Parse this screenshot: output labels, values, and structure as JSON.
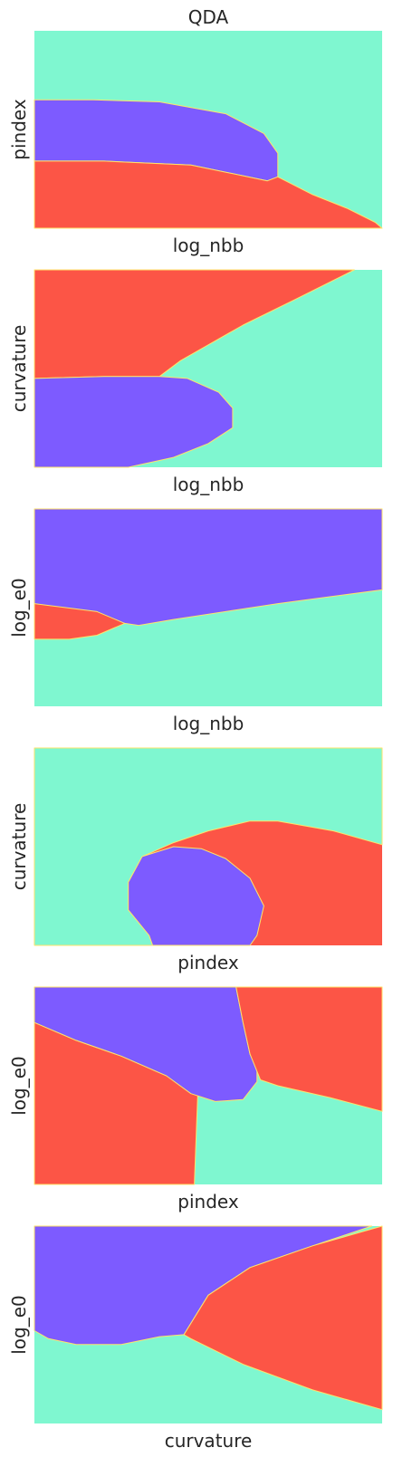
{
  "title": "QDA",
  "colors": {
    "class_a": "#7d5bff",
    "class_b": "#7ff7d0",
    "class_c": "#fc5546",
    "edge": "#ffe36b"
  },
  "chart_data": [
    {
      "type": "heatmap",
      "title": "QDA",
      "xlabel": "log_nbb",
      "ylabel": "pindex",
      "regions": [
        {
          "class": "class_b",
          "color": "#7ff7d0"
        },
        {
          "class": "class_a",
          "color": "#7d5bff"
        },
        {
          "class": "class_c",
          "color": "#fc5546"
        }
      ]
    },
    {
      "type": "heatmap",
      "title": "",
      "xlabel": "log_nbb",
      "ylabel": "curvature",
      "regions": [
        {
          "class": "class_b",
          "color": "#7ff7d0"
        },
        {
          "class": "class_c",
          "color": "#fc5546"
        },
        {
          "class": "class_a",
          "color": "#7d5bff"
        }
      ]
    },
    {
      "type": "heatmap",
      "title": "",
      "xlabel": "log_nbb",
      "ylabel": "log_e0",
      "regions": [
        {
          "class": "class_b",
          "color": "#7ff7d0"
        },
        {
          "class": "class_a",
          "color": "#7d5bff"
        },
        {
          "class": "class_c",
          "color": "#fc5546"
        }
      ]
    },
    {
      "type": "heatmap",
      "title": "",
      "xlabel": "pindex",
      "ylabel": "curvature",
      "regions": [
        {
          "class": "class_c",
          "color": "#fc5546"
        },
        {
          "class": "class_b",
          "color": "#7ff7d0"
        },
        {
          "class": "class_a",
          "color": "#7d5bff"
        }
      ]
    },
    {
      "type": "heatmap",
      "title": "",
      "xlabel": "pindex",
      "ylabel": "log_e0",
      "regions": [
        {
          "class": "class_b",
          "color": "#7ff7d0"
        },
        {
          "class": "class_c",
          "color": "#fc5546"
        },
        {
          "class": "class_a",
          "color": "#7d5bff"
        },
        {
          "class": "class_c",
          "color": "#fc5546"
        }
      ]
    },
    {
      "type": "heatmap",
      "title": "",
      "xlabel": "curvature",
      "ylabel": "log_e0",
      "regions": [
        {
          "class": "class_b",
          "color": "#7ff7d0"
        },
        {
          "class": "class_a",
          "color": "#7d5bff"
        },
        {
          "class": "class_c",
          "color": "#fc5546"
        }
      ]
    }
  ]
}
